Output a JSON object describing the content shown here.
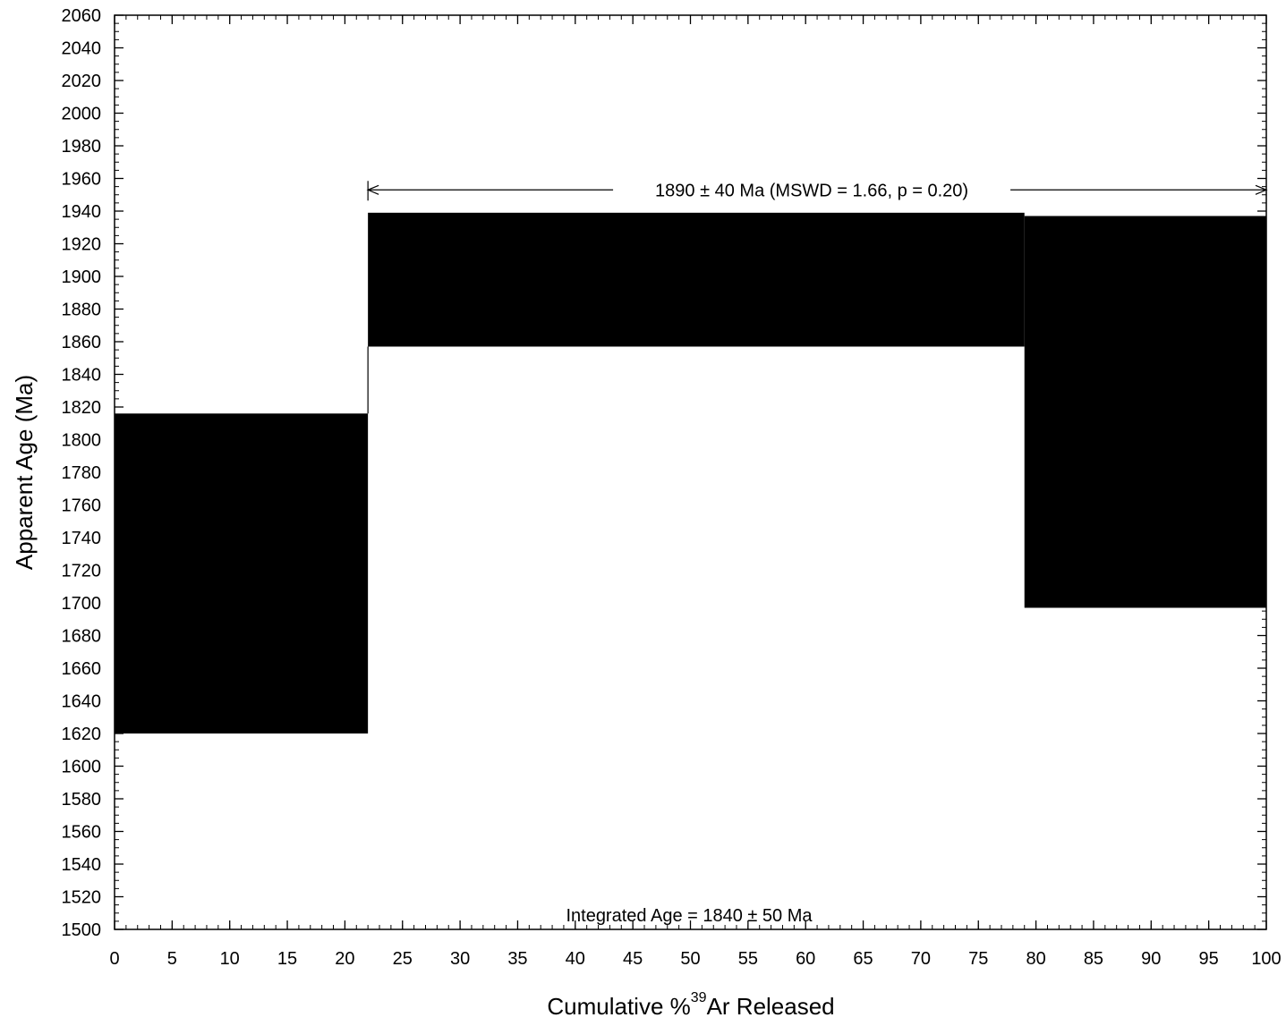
{
  "chart_data": {
    "type": "step",
    "title": "",
    "xlabel": {
      "prefix": "Cumulative %",
      "superscript": "39",
      "suffix": "Ar Released"
    },
    "ylabel": "Apparent Age (Ma)",
    "xlim": [
      0,
      100
    ],
    "ylim": [
      1500,
      2060
    ],
    "x_major_ticks": [
      0,
      5,
      10,
      15,
      20,
      25,
      30,
      35,
      40,
      45,
      50,
      55,
      60,
      65,
      70,
      75,
      80,
      85,
      90,
      95,
      100
    ],
    "y_major_ticks": [
      1500,
      1520,
      1540,
      1560,
      1580,
      1600,
      1620,
      1640,
      1660,
      1680,
      1700,
      1720,
      1740,
      1760,
      1780,
      1800,
      1820,
      1840,
      1860,
      1880,
      1900,
      1920,
      1940,
      1960,
      1980,
      2000,
      2020,
      2040,
      2060
    ],
    "x_minor_step": 1,
    "y_minor_step": 5,
    "grid": false,
    "steps": [
      {
        "x_start": 0,
        "x_end": 22,
        "age_low": 1620,
        "age_high": 1816
      },
      {
        "x_start": 22,
        "x_end": 79,
        "age_low": 1857,
        "age_high": 1939
      },
      {
        "x_start": 79,
        "x_end": 100,
        "age_low": 1697,
        "age_high": 1937
      }
    ],
    "plateau": {
      "x_start": 22,
      "x_end": 100,
      "y": 1953,
      "label": "1890 ± 40 Ma (MSWD = 1.66, p = 0.20)"
    },
    "integrated_age_label": "Integrated Age = 1840 ± 50 Ma",
    "colors": {
      "fill": "#000000",
      "axis": "#000000",
      "background": "#ffffff"
    }
  }
}
